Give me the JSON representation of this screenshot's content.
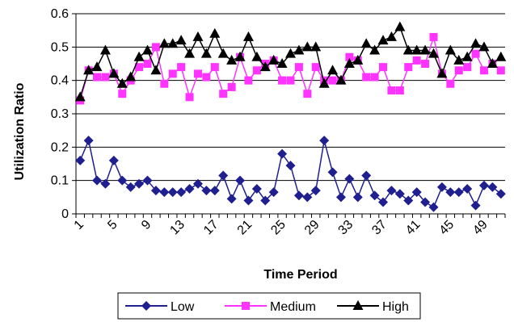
{
  "chart_data": {
    "type": "line",
    "xlabel": "Time Period",
    "ylabel": "Utilization Ratio",
    "xlim": [
      1,
      52
    ],
    "ylim": [
      0,
      0.6
    ],
    "yticks": [
      "0",
      "0.1",
      "0.2",
      "0.3",
      "0.4",
      "0.5",
      "0.6"
    ],
    "ytick_values": [
      0,
      0.1,
      0.2,
      0.3,
      0.4,
      0.5,
      0.6
    ],
    "xticks": [
      "1",
      "5",
      "9",
      "13",
      "17",
      "21",
      "25",
      "29",
      "33",
      "37",
      "41",
      "45",
      "49"
    ],
    "xtick_values": [
      1,
      5,
      9,
      13,
      17,
      21,
      25,
      29,
      33,
      37,
      41,
      45,
      49
    ],
    "grid": "horizontal",
    "legend_position": "bottom",
    "series": [
      {
        "name": "Low",
        "color": "#1f1f8f",
        "marker": "diamond",
        "values": [
          0.16,
          0.22,
          0.1,
          0.09,
          0.16,
          0.1,
          0.08,
          0.09,
          0.1,
          0.07,
          0.065,
          0.065,
          0.065,
          0.075,
          0.09,
          0.07,
          0.07,
          0.115,
          0.045,
          0.1,
          0.04,
          0.075,
          0.04,
          0.065,
          0.18,
          0.145,
          0.055,
          0.05,
          0.07,
          0.22,
          0.125,
          0.05,
          0.105,
          0.05,
          0.115,
          0.055,
          0.035,
          0.07,
          0.06,
          0.04,
          0.065,
          0.035,
          0.02,
          0.08,
          0.065,
          0.065,
          0.075,
          0.025,
          0.085,
          0.08,
          0.06
        ]
      },
      {
        "name": "Medium",
        "color": "#ff33ff",
        "marker": "square",
        "values": [
          0.34,
          0.43,
          0.41,
          0.41,
          0.42,
          0.36,
          0.4,
          0.44,
          0.45,
          0.5,
          0.39,
          0.42,
          0.44,
          0.35,
          0.42,
          0.41,
          0.44,
          0.36,
          0.38,
          0.47,
          0.4,
          0.43,
          0.45,
          0.46,
          0.4,
          0.4,
          0.44,
          0.36,
          0.44,
          0.4,
          0.4,
          0.4,
          0.47,
          0.46,
          0.41,
          0.41,
          0.44,
          0.37,
          0.37,
          0.44,
          0.46,
          0.45,
          0.53,
          0.42,
          0.39,
          0.43,
          0.44,
          0.48,
          0.43,
          0.45,
          0.43
        ]
      },
      {
        "name": "High",
        "color": "#000000",
        "marker": "triangle",
        "values": [
          0.35,
          0.43,
          0.44,
          0.49,
          0.42,
          0.39,
          0.41,
          0.47,
          0.49,
          0.43,
          0.51,
          0.51,
          0.52,
          0.48,
          0.53,
          0.48,
          0.54,
          0.48,
          0.46,
          0.47,
          0.53,
          0.47,
          0.44,
          0.46,
          0.45,
          0.48,
          0.49,
          0.5,
          0.5,
          0.39,
          0.43,
          0.4,
          0.45,
          0.46,
          0.51,
          0.49,
          0.52,
          0.53,
          0.56,
          0.49,
          0.49,
          0.49,
          0.48,
          0.42,
          0.49,
          0.46,
          0.47,
          0.51,
          0.5,
          0.45,
          0.47
        ]
      }
    ]
  }
}
